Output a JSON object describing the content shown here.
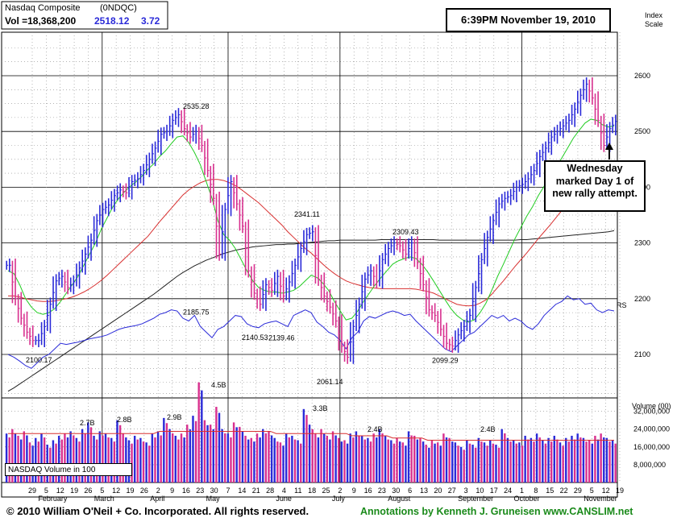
{
  "header": {
    "name": "Nasdaq Composite",
    "symbol": "(0NDQC)",
    "vol_label": "Vol =18,368,200",
    "price": "2518.12",
    "change": "3.72"
  },
  "timestamp": "6:39PM November 19, 2010",
  "callout": {
    "lines": [
      "Wednesday",
      "marked Day 1 of",
      "new rally attempt."
    ]
  },
  "footer": {
    "copyright": "© 2010 William O'Neil + Co. Incorporated. All rights reserved.",
    "credits": "Annotations by Kenneth J. Gruneisen www.CANSLIM.net"
  },
  "volume_legend": "NASDAQ Volume in 100",
  "colors": {
    "up_bar": "#2a2ad8",
    "down_bar": "#d8308f",
    "ma50": "#22cc22",
    "ma200_red": "#d83030",
    "ma_long": "#222222",
    "rs_line": "#2a2ad8",
    "volume_ma": "#d83030",
    "credits": "#1a8a1a"
  },
  "chart_data": {
    "type": "line",
    "title": "Nasdaq Composite",
    "price_axis": {
      "label": [
        "Index",
        "Scale"
      ],
      "ticks": [
        2100,
        2200,
        2300,
        2400,
        2500,
        2600
      ],
      "ylim": [
        2022,
        2678
      ]
    },
    "volume_axis": {
      "label": "Volume (00)",
      "ticks": [
        "32,000,000",
        "24,000,000",
        "16,000,000",
        "8,000,000"
      ],
      "values": [
        32000000,
        24000000,
        16000000,
        8000000
      ],
      "ylim": [
        0,
        38000000
      ]
    },
    "x_axis": {
      "day_ticks": [
        "29",
        "5",
        "12",
        "19",
        "26",
        "5",
        "12",
        "19",
        "26",
        "2",
        "9",
        "16",
        "23",
        "30",
        "7",
        "14",
        "21",
        "28",
        "4",
        "11",
        "18",
        "25",
        "2",
        "9",
        "16",
        "23",
        "30",
        "6",
        "13",
        "20",
        "27",
        "3",
        "10",
        "17",
        "24",
        "1",
        "8",
        "15",
        "22",
        "29",
        "5",
        "12",
        "19"
      ],
      "months": [
        "February",
        "March",
        "April",
        "May",
        "June",
        "July",
        "August",
        "September",
        "October",
        "November"
      ],
      "range": [
        "2010-01-29",
        "2010-11-19"
      ]
    },
    "price_annotations": [
      {
        "label": "2100.17",
        "value": 2100.17
      },
      {
        "label": "2535.28",
        "value": 2535.28
      },
      {
        "label": "2185.75",
        "value": 2185.75
      },
      {
        "label": "2140.53",
        "value": 2140.53
      },
      {
        "label": "2139.46",
        "value": 2139.46
      },
      {
        "label": "2341.11",
        "value": 2341.11
      },
      {
        "label": "2061.14",
        "value": 2061.14
      },
      {
        "label": "2309.43",
        "value": 2309.43
      },
      {
        "label": "2099.29",
        "value": 2099.29
      }
    ],
    "volume_annotations": [
      {
        "label": "2.7B",
        "value": 27000000
      },
      {
        "label": "2.8B",
        "value": 28000000
      },
      {
        "label": "2.9B",
        "value": 29000000
      },
      {
        "label": "4.5B",
        "value": 45000000
      },
      {
        "label": "3.3B",
        "value": 33000000
      },
      {
        "label": "2.4B",
        "value": 24000000
      },
      {
        "label": "2.4B",
        "value": 24000000
      }
    ],
    "rs_label": "RS",
    "series": [
      {
        "name": "price_close",
        "values": [
          2260,
          2200,
          2165,
          2140,
          2125,
          2125,
          2150,
          2190,
          2232,
          2240,
          2220,
          2230,
          2255,
          2280,
          2305,
          2340,
          2360,
          2368,
          2385,
          2395,
          2390,
          2410,
          2415,
          2430,
          2450,
          2470,
          2495,
          2500,
          2520,
          2530,
          2505,
          2490,
          2500,
          2475,
          2430,
          2380,
          2280,
          2360,
          2410,
          2370,
          2330,
          2250,
          2210,
          2190,
          2225,
          2215,
          2240,
          2205,
          2230,
          2260,
          2290,
          2315,
          2320,
          2235,
          2205,
          2185,
          2160,
          2115,
          2095,
          2150,
          2190,
          2235,
          2250,
          2230,
          2270,
          2290,
          2300,
          2295,
          2280,
          2300,
          2265,
          2225,
          2180,
          2170,
          2145,
          2120,
          2115,
          2135,
          2150,
          2170,
          2220,
          2270,
          2310,
          2340,
          2370,
          2380,
          2385,
          2400,
          2405,
          2415,
          2430,
          2455,
          2470,
          2490,
          2500,
          2510,
          2520,
          2540,
          2565,
          2585,
          2560,
          2520,
          2475,
          2505,
          2518
        ]
      },
      {
        "name": "ma50",
        "values": [
          2250,
          2245,
          2225,
          2200,
          2185,
          2175,
          2172,
          2175,
          2182,
          2195,
          2210,
          2225,
          2240,
          2260,
          2280,
          2300,
          2325,
          2345,
          2365,
          2380,
          2392,
          2402,
          2410,
          2420,
          2432,
          2442,
          2455,
          2465,
          2478,
          2490,
          2492,
          2480,
          2462,
          2440,
          2410,
          2380,
          2340,
          2315,
          2305,
          2290,
          2270,
          2250,
          2232,
          2220,
          2215,
          2212,
          2212,
          2210,
          2212,
          2215,
          2222,
          2232,
          2242,
          2238,
          2228,
          2215,
          2195,
          2178,
          2162,
          2165,
          2178,
          2195,
          2210,
          2225,
          2238,
          2250,
          2262,
          2268,
          2272,
          2275,
          2272,
          2262,
          2248,
          2232,
          2215,
          2198,
          2182,
          2170,
          2162,
          2158,
          2162,
          2175,
          2192,
          2215,
          2240,
          2262,
          2285,
          2308,
          2328,
          2348,
          2365,
          2385,
          2402,
          2418,
          2435,
          2452,
          2470,
          2488,
          2502,
          2515,
          2522,
          2520,
          2512,
          2508,
          2510
        ]
      },
      {
        "name": "ma_red",
        "values": [
          2205,
          2205,
          2203,
          2200,
          2198,
          2196,
          2195,
          2195,
          2196,
          2198,
          2200,
          2203,
          2207,
          2212,
          2218,
          2225,
          2233,
          2242,
          2252,
          2262,
          2272,
          2282,
          2292,
          2302,
          2312,
          2325,
          2338,
          2350,
          2362,
          2374,
          2386,
          2395,
          2402,
          2408,
          2412,
          2414,
          2414,
          2412,
          2408,
          2403,
          2396,
          2388,
          2380,
          2372,
          2362,
          2352,
          2342,
          2332,
          2320,
          2310,
          2300,
          2290,
          2282,
          2272,
          2262,
          2253,
          2245,
          2238,
          2232,
          2228,
          2225,
          2222,
          2220,
          2219,
          2218,
          2218,
          2218,
          2218,
          2218,
          2218,
          2217,
          2215,
          2213,
          2210,
          2205,
          2200,
          2195,
          2190,
          2188,
          2187,
          2188,
          2192,
          2198,
          2208,
          2220,
          2232,
          2245,
          2258,
          2270,
          2282,
          2295,
          2308,
          2320,
          2332,
          2345,
          2358,
          2372,
          2386,
          2400,
          2412,
          2422,
          2430,
          2436,
          2440,
          2442
        ]
      },
      {
        "name": "ma_long",
        "values": [
          2034,
          2040,
          2047,
          2054,
          2061,
          2068,
          2075,
          2082,
          2089,
          2096,
          2103,
          2110,
          2117,
          2124,
          2131,
          2138,
          2145,
          2152,
          2159,
          2166,
          2173,
          2180,
          2187,
          2194,
          2201,
          2208,
          2216,
          2224,
          2232,
          2240,
          2247,
          2253,
          2259,
          2264,
          2269,
          2273,
          2277,
          2281,
          2284,
          2287,
          2289,
          2291,
          2293,
          2294,
          2295,
          2296,
          2297,
          2297,
          2298,
          2298,
          2299,
          2300,
          2301,
          2302,
          2303,
          2304,
          2304,
          2305,
          2305,
          2305,
          2305,
          2305,
          2305,
          2305,
          2306,
          2306,
          2306,
          2306,
          2306,
          2306,
          2306,
          2306,
          2306,
          2306,
          2305,
          2305,
          2305,
          2305,
          2305,
          2305,
          2305,
          2305,
          2305,
          2305,
          2305,
          2305,
          2305,
          2305,
          2306,
          2306,
          2307,
          2308,
          2309,
          2310,
          2311,
          2312,
          2313,
          2314,
          2315,
          2316,
          2317,
          2318,
          2319,
          2320,
          2322
        ]
      },
      {
        "name": "rs",
        "values": [
          2100,
          2095,
          2088,
          2080,
          2075,
          2085,
          2095,
          2100,
          2110,
          2120,
          2118,
          2120,
          2122,
          2125,
          2128,
          2130,
          2132,
          2135,
          2140,
          2145,
          2148,
          2150,
          2152,
          2155,
          2160,
          2165,
          2172,
          2175,
          2180,
          2178,
          2165,
          2160,
          2170,
          2150,
          2140,
          2130,
          2145,
          2150,
          2160,
          2170,
          2168,
          2155,
          2150,
          2148,
          2155,
          2158,
          2160,
          2155,
          2150,
          2170,
          2175,
          2180,
          2175,
          2158,
          2150,
          2140,
          2135,
          2125,
          2110,
          2130,
          2140,
          2160,
          2168,
          2165,
          2170,
          2175,
          2178,
          2175,
          2170,
          2172,
          2160,
          2150,
          2140,
          2130,
          2120,
          2110,
          2105,
          2115,
          2125,
          2135,
          2140,
          2150,
          2160,
          2170,
          2165,
          2170,
          2160,
          2165,
          2160,
          2150,
          2145,
          2155,
          2170,
          2180,
          2190,
          2195,
          2205,
          2198,
          2200,
          2190,
          2192,
          2180,
          2175,
          2180,
          2178
        ]
      },
      {
        "name": "volume",
        "values": [
          22,
          24,
          21,
          23,
          18,
          20,
          22,
          17,
          19,
          21,
          22,
          23,
          20,
          24,
          27,
          21,
          23,
          22,
          20,
          28,
          22,
          19,
          21,
          20,
          18,
          22,
          23,
          29,
          24,
          21,
          22,
          26,
          30,
          45,
          28,
          26,
          34,
          24,
          22,
          27,
          25,
          21,
          20,
          22,
          24,
          23,
          20,
          18,
          22,
          21,
          19,
          33,
          26,
          22,
          24,
          21,
          23,
          20,
          19,
          22,
          23,
          21,
          20,
          22,
          24,
          21,
          19,
          20,
          18,
          23,
          21,
          20,
          17,
          19,
          18,
          22,
          20,
          18,
          16,
          19,
          17,
          20,
          18,
          19,
          17,
          24,
          20,
          19,
          18,
          21,
          20,
          22,
          19,
          20,
          21,
          18,
          20,
          21,
          22,
          20,
          19,
          21,
          22,
          20,
          19
        ]
      },
      {
        "name": "volume_ma",
        "values": [
          22,
          22,
          22,
          22,
          22,
          22,
          22,
          22,
          22,
          22,
          22,
          22,
          22,
          22,
          22,
          22,
          22,
          22,
          22,
          22,
          22,
          22,
          22,
          22,
          22,
          22,
          23,
          23,
          23,
          23,
          23,
          23,
          23,
          23,
          23,
          23,
          23,
          23,
          23,
          23,
          23,
          23,
          23,
          23,
          23,
          23,
          22,
          22,
          22,
          22,
          22,
          22,
          22,
          22,
          22,
          22,
          22,
          22,
          22,
          21,
          21,
          21,
          21,
          21,
          21,
          21,
          20,
          20,
          20,
          20,
          20,
          20,
          19,
          19,
          19,
          19,
          19,
          19,
          19,
          19,
          19,
          19,
          19,
          19,
          19,
          19,
          19,
          19,
          19,
          19,
          19,
          19,
          19,
          19,
          19,
          19,
          19,
          19,
          19,
          19,
          19,
          19,
          19,
          19,
          19
        ]
      }
    ]
  }
}
